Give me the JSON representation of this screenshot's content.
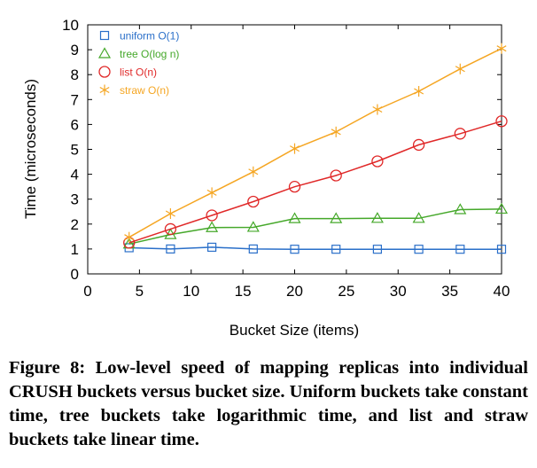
{
  "chart_data": {
    "type": "line",
    "xlabel": "Bucket Size (items)",
    "ylabel": "Time (microseconds)",
    "xlim": [
      0,
      40
    ],
    "ylim": [
      0,
      10
    ],
    "xticks": [
      0,
      5,
      10,
      15,
      20,
      25,
      30,
      35,
      40
    ],
    "yticks": [
      0,
      1,
      2,
      3,
      4,
      5,
      6,
      7,
      8,
      9,
      10
    ],
    "grid": false,
    "legend_position": "top-left",
    "x": [
      4,
      8,
      12,
      16,
      20,
      24,
      28,
      32,
      36,
      40
    ],
    "series": [
      {
        "name": "uniform O(1)",
        "marker": "square",
        "color": "#2a6fc9",
        "values": [
          1.05,
          1.0,
          1.07,
          1.0,
          0.99,
          0.99,
          0.99,
          0.99,
          0.99,
          0.99
        ]
      },
      {
        "name": "tree O(log n)",
        "marker": "triangle",
        "color": "#45a82a",
        "values": [
          1.2,
          1.58,
          1.86,
          1.87,
          2.22,
          2.22,
          2.23,
          2.23,
          2.58,
          2.6
        ]
      },
      {
        "name": "list O(n)",
        "marker": "circle",
        "color": "#e02828",
        "values": [
          1.25,
          1.8,
          2.35,
          2.9,
          3.5,
          3.95,
          4.52,
          5.18,
          5.63,
          6.13
        ]
      },
      {
        "name": "straw O(n)",
        "marker": "star",
        "color": "#f5a623",
        "values": [
          1.47,
          2.42,
          3.26,
          4.1,
          5.03,
          5.7,
          6.6,
          7.33,
          8.23,
          9.05
        ]
      }
    ]
  },
  "caption": "Figure 8: Low-level speed of mapping replicas into individual CRUSH buckets versus bucket size. Uniform buckets take constant time, tree buckets take logarithmic time, and list and straw buckets take linear time."
}
